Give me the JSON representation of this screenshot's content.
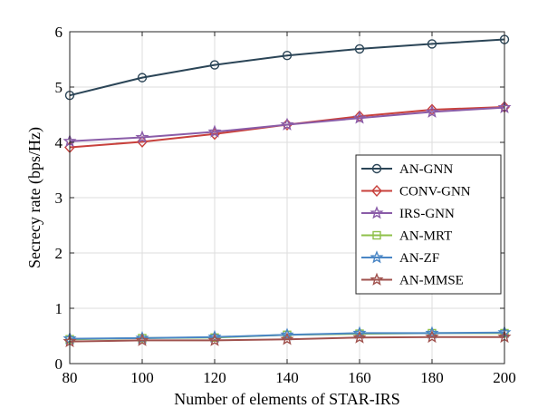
{
  "chart_data": {
    "type": "line",
    "title": "",
    "xlabel": "Number of elements of STAR-IRS",
    "ylabel": "Secrecy rate (bps/Hz)",
    "x": [
      80,
      100,
      120,
      140,
      160,
      180,
      200
    ],
    "xlim": [
      80,
      200
    ],
    "ylim": [
      0,
      6
    ],
    "xticks": [
      80,
      100,
      120,
      140,
      160,
      180,
      200
    ],
    "yticks": [
      0,
      1,
      2,
      3,
      4,
      5,
      6
    ],
    "grid": true,
    "legend_position": "right",
    "series": [
      {
        "name": "AN-GNN",
        "color": "#2b4557",
        "marker": "circle",
        "values": [
          4.85,
          5.17,
          5.4,
          5.57,
          5.69,
          5.78,
          5.86
        ]
      },
      {
        "name": "CONV-GNN",
        "color": "#c8413c",
        "marker": "diamond",
        "values": [
          3.91,
          4.01,
          4.15,
          4.32,
          4.47,
          4.59,
          4.64
        ]
      },
      {
        "name": "IRS-GNN",
        "color": "#8a5ca8",
        "marker": "star",
        "values": [
          4.02,
          4.09,
          4.19,
          4.32,
          4.44,
          4.55,
          4.63
        ]
      },
      {
        "name": "AN-MRT",
        "color": "#8fc04a",
        "marker": "square",
        "values": [
          0.44,
          0.46,
          0.47,
          0.52,
          0.54,
          0.55,
          0.55
        ]
      },
      {
        "name": "AN-ZF",
        "color": "#4a86c5",
        "marker": "star",
        "values": [
          0.45,
          0.46,
          0.48,
          0.52,
          0.55,
          0.55,
          0.56
        ]
      },
      {
        "name": "AN-MMSE",
        "color": "#a0524e",
        "marker": "star",
        "values": [
          0.4,
          0.42,
          0.42,
          0.44,
          0.47,
          0.48,
          0.48
        ]
      }
    ]
  }
}
